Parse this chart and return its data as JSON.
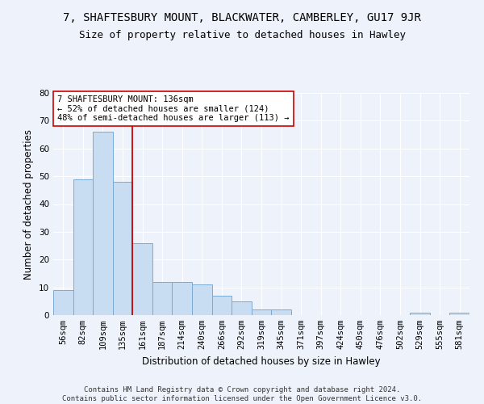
{
  "title": "7, SHAFTESBURY MOUNT, BLACKWATER, CAMBERLEY, GU17 9JR",
  "subtitle": "Size of property relative to detached houses in Hawley",
  "xlabel": "Distribution of detached houses by size in Hawley",
  "ylabel": "Number of detached properties",
  "footer_line1": "Contains HM Land Registry data © Crown copyright and database right 2024.",
  "footer_line2": "Contains public sector information licensed under the Open Government Licence v3.0.",
  "annotation_line1": "7 SHAFTESBURY MOUNT: 136sqm",
  "annotation_line2": "← 52% of detached houses are smaller (124)",
  "annotation_line3": "48% of semi-detached houses are larger (113) →",
  "bar_labels": [
    "56sqm",
    "82sqm",
    "109sqm",
    "135sqm",
    "161sqm",
    "187sqm",
    "214sqm",
    "240sqm",
    "266sqm",
    "292sqm",
    "319sqm",
    "345sqm",
    "371sqm",
    "397sqm",
    "424sqm",
    "450sqm",
    "476sqm",
    "502sqm",
    "529sqm",
    "555sqm",
    "581sqm"
  ],
  "bar_values": [
    9,
    49,
    66,
    48,
    26,
    12,
    12,
    11,
    7,
    5,
    2,
    2,
    0,
    0,
    0,
    0,
    0,
    0,
    1,
    0,
    1
  ],
  "bar_color": "#c9ddf2",
  "bar_edge_color": "#7aaad4",
  "reference_line_x": 3.5,
  "reference_line_color": "#cc0000",
  "ylim": [
    0,
    80
  ],
  "yticks": [
    0,
    10,
    20,
    30,
    40,
    50,
    60,
    70,
    80
  ],
  "annotation_box_color": "#ffffff",
  "annotation_box_edge_color": "#cc0000",
  "background_color": "#edf2fb",
  "grid_color": "#ffffff",
  "title_fontsize": 10,
  "subtitle_fontsize": 9,
  "ylabel_fontsize": 8.5,
  "xlabel_fontsize": 8.5,
  "tick_fontsize": 7.5,
  "annotation_fontsize": 7.5,
  "footer_fontsize": 6.5
}
